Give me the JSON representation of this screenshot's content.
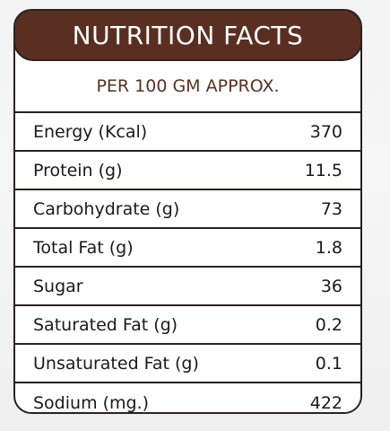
{
  "header": {
    "title": "NUTRITION FACTS",
    "subtitle": "PER 100 GM APPROX."
  },
  "rows": [
    {
      "label": "Energy (Kcal)",
      "value": "370"
    },
    {
      "label": "Protein (g)",
      "value": "11.5"
    },
    {
      "label": "Carbohydrate (g)",
      "value": "73"
    },
    {
      "label": "Total Fat (g)",
      "value": "1.8"
    },
    {
      "label": "Sugar",
      "value": "36"
    },
    {
      "label": "Saturated Fat (g)",
      "value": "0.2"
    },
    {
      "label": "Unsaturated Fat (g)",
      "value": "0.1"
    },
    {
      "label": "Sodium (mg.)",
      "value": "422"
    }
  ],
  "colors": {
    "title_bar": "#5a2f22",
    "subtitle_text": "#5a2f22",
    "border": "#2a2220"
  }
}
